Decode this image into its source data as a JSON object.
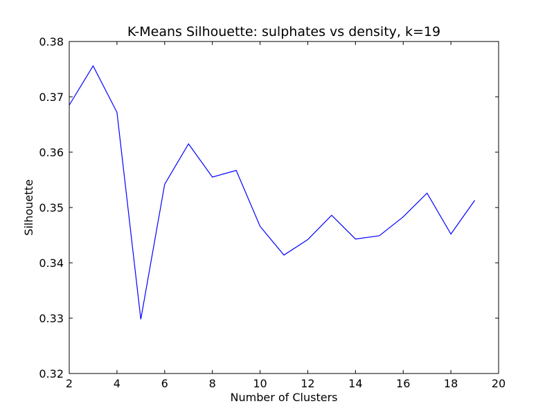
{
  "chart_data": {
    "type": "line",
    "title": "K-Means Silhouette: sulphates vs density, k=19",
    "xlabel": "Number of Clusters",
    "ylabel": "Silhouette",
    "xlim": [
      2,
      20
    ],
    "ylim": [
      0.32,
      0.38
    ],
    "xticks": [
      2,
      4,
      6,
      8,
      10,
      12,
      14,
      16,
      18,
      20
    ],
    "yticks": [
      0.32,
      0.33,
      0.34,
      0.35,
      0.36,
      0.37,
      0.38
    ],
    "ytick_labels": [
      "0.32",
      "0.33",
      "0.34",
      "0.35",
      "0.36",
      "0.37",
      "0.38"
    ],
    "grid": false,
    "series": [
      {
        "name": "silhouette",
        "color": "#0000ff",
        "x": [
          2,
          3,
          4,
          5,
          6,
          7,
          8,
          9,
          10,
          11,
          12,
          13,
          14,
          15,
          16,
          17,
          18,
          19
        ],
        "values": [
          0.3685,
          0.3756,
          0.3672,
          0.3298,
          0.3542,
          0.3615,
          0.3555,
          0.3567,
          0.3466,
          0.3414,
          0.3442,
          0.3486,
          0.3443,
          0.3449,
          0.3483,
          0.3526,
          0.3452,
          0.3513
        ]
      }
    ]
  }
}
